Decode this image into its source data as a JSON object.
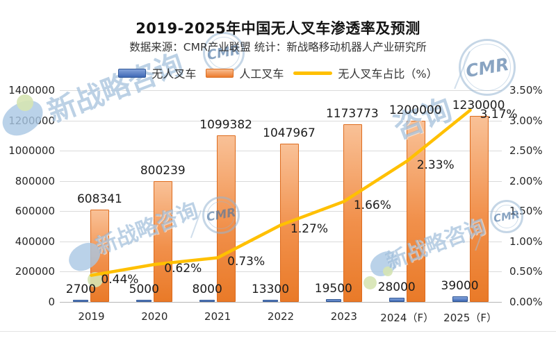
{
  "title": "2019-2025年中国无人叉车渗透率及预测",
  "subtitle": "数据来源：CMR产业联盟 统计：新战略移动机器人产业研究所",
  "legend": {
    "items": [
      {
        "label": "无人叉车",
        "color": "#4472c4",
        "swatch": "bar"
      },
      {
        "label": "人工叉车",
        "color": "#ed7d31",
        "swatch": "bar"
      },
      {
        "label": "无人叉车占比（%）",
        "color": "#ffc000",
        "swatch": "line"
      }
    ]
  },
  "watermark": {
    "brand_text": "新战略咨询",
    "brand_short": "咨询",
    "logo_text": "CMR"
  },
  "chart_data": {
    "type": "bar",
    "subtype": "clustered-bar-with-line",
    "categories": [
      "2019",
      "2020",
      "2021",
      "2022",
      "2023",
      "2024（F）",
      "2025（F）"
    ],
    "series": [
      {
        "name": "无人叉车",
        "type": "bar",
        "axis": "left",
        "color": "#4472c4",
        "values": [
          2700,
          5000,
          8000,
          13300,
          19500,
          28000,
          39000
        ],
        "labels": [
          "2700",
          "5000",
          "8000",
          "13300",
          "19500",
          "28000",
          "39000"
        ]
      },
      {
        "name": "人工叉车",
        "type": "bar",
        "axis": "left",
        "color": "#ed7d31",
        "values": [
          608341,
          800239,
          1099382,
          1047967,
          1173773,
          1200000,
          1230000
        ],
        "labels": [
          "608341",
          "800239",
          "1099382",
          "1047967",
          "1173773",
          "1200000",
          "1230000"
        ]
      },
      {
        "name": "无人叉车占比（%）",
        "type": "line",
        "axis": "right",
        "color": "#ffc000",
        "values": [
          0.44,
          0.62,
          0.73,
          1.27,
          1.66,
          2.33,
          3.17
        ],
        "labels": [
          "0.44%",
          "0.62%",
          "0.73%",
          "1.27%",
          "1.66%",
          "2.33%",
          "3.17%"
        ]
      }
    ],
    "left_axis": {
      "min": 0,
      "max": 1400000,
      "ticks": [
        "0",
        "200000",
        "400000",
        "600000",
        "800000",
        "1000000",
        "1200000",
        "1400000"
      ]
    },
    "right_axis": {
      "min": 0,
      "max": 3.5,
      "ticks": [
        "0.00%",
        "0.50%",
        "1.00%",
        "1.50%",
        "2.00%",
        "2.50%",
        "3.00%",
        "3.50%"
      ]
    },
    "grid": true,
    "legend_position": "top"
  }
}
